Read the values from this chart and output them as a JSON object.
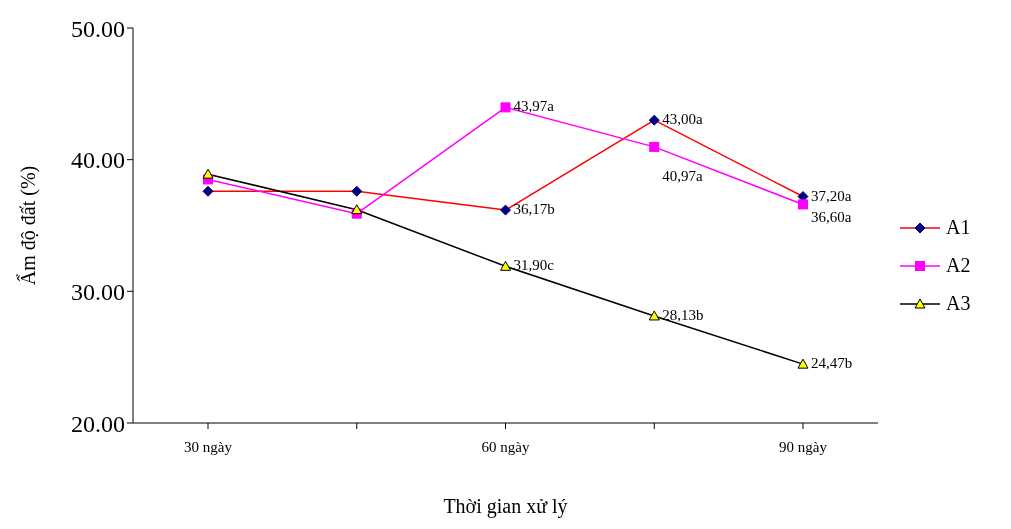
{
  "chart_data": {
    "type": "line",
    "xlabel": "Thời gian xử lý",
    "ylabel": "Ẩm độ đất (%)",
    "categories": [
      "30 ngày",
      null,
      "60 ngày",
      null,
      "90 ngày"
    ],
    "series": [
      {
        "name": "A1",
        "color": "#ff0000",
        "marker": "diamond",
        "colors": [
          "#000080",
          "#000080",
          "#000080",
          "#000080",
          "#000080"
        ],
        "values": [
          37.6,
          37.6,
          36.17,
          43.0,
          37.2
        ],
        "value_labels": [
          null,
          null,
          "36,17b",
          "43,00a",
          "37,20a"
        ]
      },
      {
        "name": "A2",
        "color": "#ff00ff",
        "marker": "square",
        "colors": [
          "#ff00ff",
          "#ff00ff",
          "#ff00ff",
          "#ff00ff",
          "#ff00ff"
        ],
        "values": [
          38.5,
          35.9,
          43.97,
          40.97,
          36.6
        ],
        "value_labels": [
          null,
          null,
          "43,97a",
          "40,97a",
          "36,60a"
        ]
      },
      {
        "name": "A3",
        "color": "#000000",
        "marker": "triangle",
        "colors": [
          "#ffff00",
          "#ffff00",
          "#ffff00",
          "#ffff00",
          "#ffff00"
        ],
        "values": [
          38.9,
          36.2,
          31.9,
          28.13,
          24.47
        ],
        "value_labels": [
          null,
          null,
          "31,90c",
          "28,13b",
          "24,47b"
        ]
      }
    ],
    "ylim": [
      20,
      50
    ],
    "yticks": [
      {
        "value": 20,
        "label": "20.00"
      },
      {
        "value": 30,
        "label": "30.00"
      },
      {
        "value": 40,
        "label": "40.00"
      },
      {
        "value": 50,
        "label": "50.00"
      }
    ],
    "grid": false,
    "legend": "right"
  }
}
